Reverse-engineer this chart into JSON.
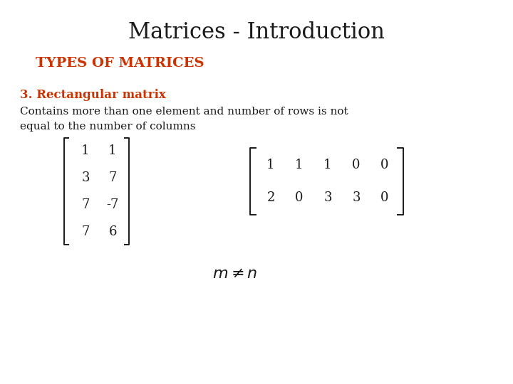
{
  "title": "Matrices - Introduction",
  "subtitle": "TYPES OF MATRICES",
  "subtitle_color": "#cc3300",
  "section_label": "3. Rectangular matrix",
  "section_color": "#cc3300",
  "body_text": "Contains more than one element and number of rows is not\nequal to the number of columns",
  "matrix1": [
    [
      1,
      1
    ],
    [
      3,
      7
    ],
    [
      7,
      -7
    ],
    [
      7,
      6
    ]
  ],
  "matrix2": [
    [
      1,
      1,
      1,
      0,
      0
    ],
    [
      2,
      0,
      3,
      3,
      0
    ]
  ],
  "bg_color": "#ffffff",
  "text_color": "#1a1a1a",
  "title_fontsize": 22,
  "subtitle_fontsize": 14,
  "section_fontsize": 12,
  "body_fontsize": 11,
  "matrix_fontsize": 13
}
